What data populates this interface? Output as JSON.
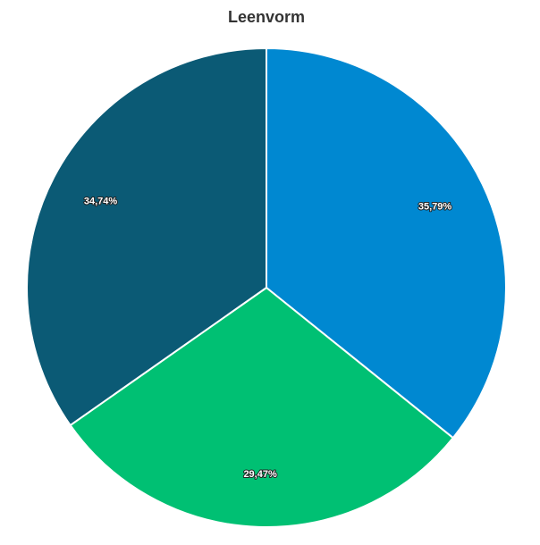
{
  "chart_data": {
    "type": "pie",
    "title": "Leenvorm",
    "values": [
      35.79,
      29.47,
      34.74
    ],
    "value_labels": [
      "35,79%",
      "29,47%",
      "34,74%"
    ],
    "colors": [
      "#0088d1",
      "#00c073",
      "#0b5a75"
    ]
  }
}
